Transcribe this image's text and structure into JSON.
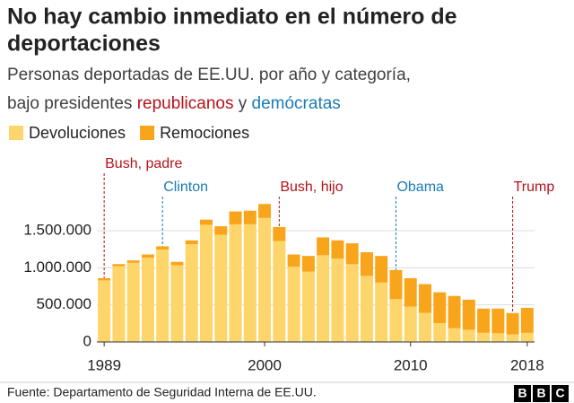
{
  "chart_data": {
    "type": "bar",
    "stacked": true,
    "title": [
      "No hay cambio inmediato en el número de",
      "deportaciones"
    ],
    "subtitle": {
      "line1": "Personas deportadas de EE.UU. por año y categoría,",
      "line2": "bajo presidentes",
      "republicans": "republicanos",
      "and": "y",
      "democrats": "demócratas",
      "republicans_color": "#b5121b",
      "democrats_color": "#1a7bb5"
    },
    "x": [
      1989,
      1990,
      1991,
      1992,
      1993,
      1994,
      1995,
      1996,
      1997,
      1998,
      1999,
      2000,
      2001,
      2002,
      2003,
      2004,
      2005,
      2006,
      2007,
      2008,
      2009,
      2010,
      2011,
      2012,
      2013,
      2014,
      2015,
      2016,
      2017,
      2018
    ],
    "series": [
      {
        "name": "Devoluciones",
        "color": "#fdd56a",
        "values": [
          830000,
          1020000,
          1067000,
          1137000,
          1247000,
          1035000,
          1319000,
          1580000,
          1446000,
          1586000,
          1587000,
          1672000,
          1361000,
          1015000,
          949000,
          1170000,
          1124000,
          1049000,
          891000,
          801000,
          578000,
          478000,
          393000,
          254000,
          186000,
          165000,
          124000,
          117000,
          103000,
          123000
        ]
      },
      {
        "name": "Remociones",
        "color": "#f9a51b",
        "values": [
          30000,
          30000,
          33000,
          43000,
          43000,
          45000,
          51000,
          70000,
          114000,
          174000,
          183000,
          188000,
          189000,
          165000,
          211000,
          240000,
          246000,
          281000,
          319000,
          359000,
          392000,
          382000,
          387000,
          416000,
          434000,
          405000,
          326000,
          333000,
          287000,
          337000
        ]
      }
    ],
    "xlim": [
      1988.5,
      2018.5
    ],
    "xticks": [
      1989,
      2000,
      2010,
      2018
    ],
    "ylim": [
      0,
      1900000
    ],
    "yticks": [
      0,
      {
        "value": 500000,
        "label": "500.000"
      },
      {
        "value": 1000000,
        "label": "1.000.000"
      },
      {
        "value": 1500000,
        "label": "1.500.000"
      }
    ],
    "grid": true,
    "annotations": [
      {
        "label": "Bush, padre",
        "x": 1989,
        "color": "#b5121b"
      },
      {
        "label": "Clinton",
        "x": 1993,
        "color": "#1a7bb5"
      },
      {
        "label": "Bush, hijo",
        "x": 2001,
        "color": "#b5121b"
      },
      {
        "label": "Obama",
        "x": 2009,
        "color": "#1a7bb5"
      },
      {
        "label": "Trump",
        "x": 2017,
        "color": "#b5121b"
      }
    ],
    "source": "Fuente: Departamento de Seguridad Interna de EE.UU.",
    "logo": [
      "B",
      "B",
      "C"
    ]
  }
}
